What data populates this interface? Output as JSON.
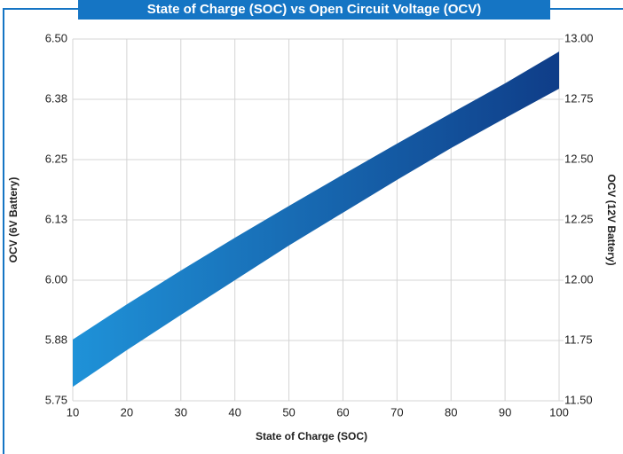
{
  "chart_data": {
    "type": "band",
    "title": "State of Charge (SOC) vs Open Circuit Voltage (OCV)",
    "x_label": "State of Charge (SOC)",
    "y_label": "OCV (6V Battery)",
    "y2_label": "OCV (12V Battery)",
    "x": [
      10,
      20,
      30,
      40,
      50,
      60,
      70,
      80,
      90,
      100
    ],
    "series": [
      {
        "values": [
          5.877,
          5.95,
          6.02,
          6.088,
          6.154,
          6.219,
          6.283,
          6.346,
          6.408,
          6.474
        ]
      },
      {
        "values": [
          5.779,
          5.855,
          5.928,
          6.0,
          6.072,
          6.14,
          6.208,
          6.274,
          6.336,
          6.397
        ]
      }
    ],
    "gradient": [
      "#1f92d8",
      "#0f3d88"
    ],
    "xlim": [
      10,
      100
    ],
    "xticks": [
      10,
      20,
      30,
      40,
      50,
      60,
      70,
      80,
      90,
      100
    ],
    "ylim": [
      5.75,
      6.5
    ],
    "yticks": [
      5.75,
      {
        "value": 5.875,
        "label": "5.88"
      },
      {
        "value": 6.0,
        "label": "6.00"
      },
      {
        "value": 6.125,
        "label": "6.13"
      },
      6.25,
      {
        "value": 6.375,
        "label": "6.38"
      },
      {
        "value": 6.5,
        "label": "6.50"
      }
    ],
    "y2lim": [
      11.5,
      13.0
    ],
    "y2ticks": [
      {
        "value": 11.5,
        "label": "11.50"
      },
      11.75,
      {
        "value": 12.0,
        "label": "12.00"
      },
      12.25,
      {
        "value": 12.5,
        "label": "12.50"
      },
      12.75,
      {
        "value": 13.0,
        "label": "13.00"
      }
    ],
    "grid": true
  }
}
